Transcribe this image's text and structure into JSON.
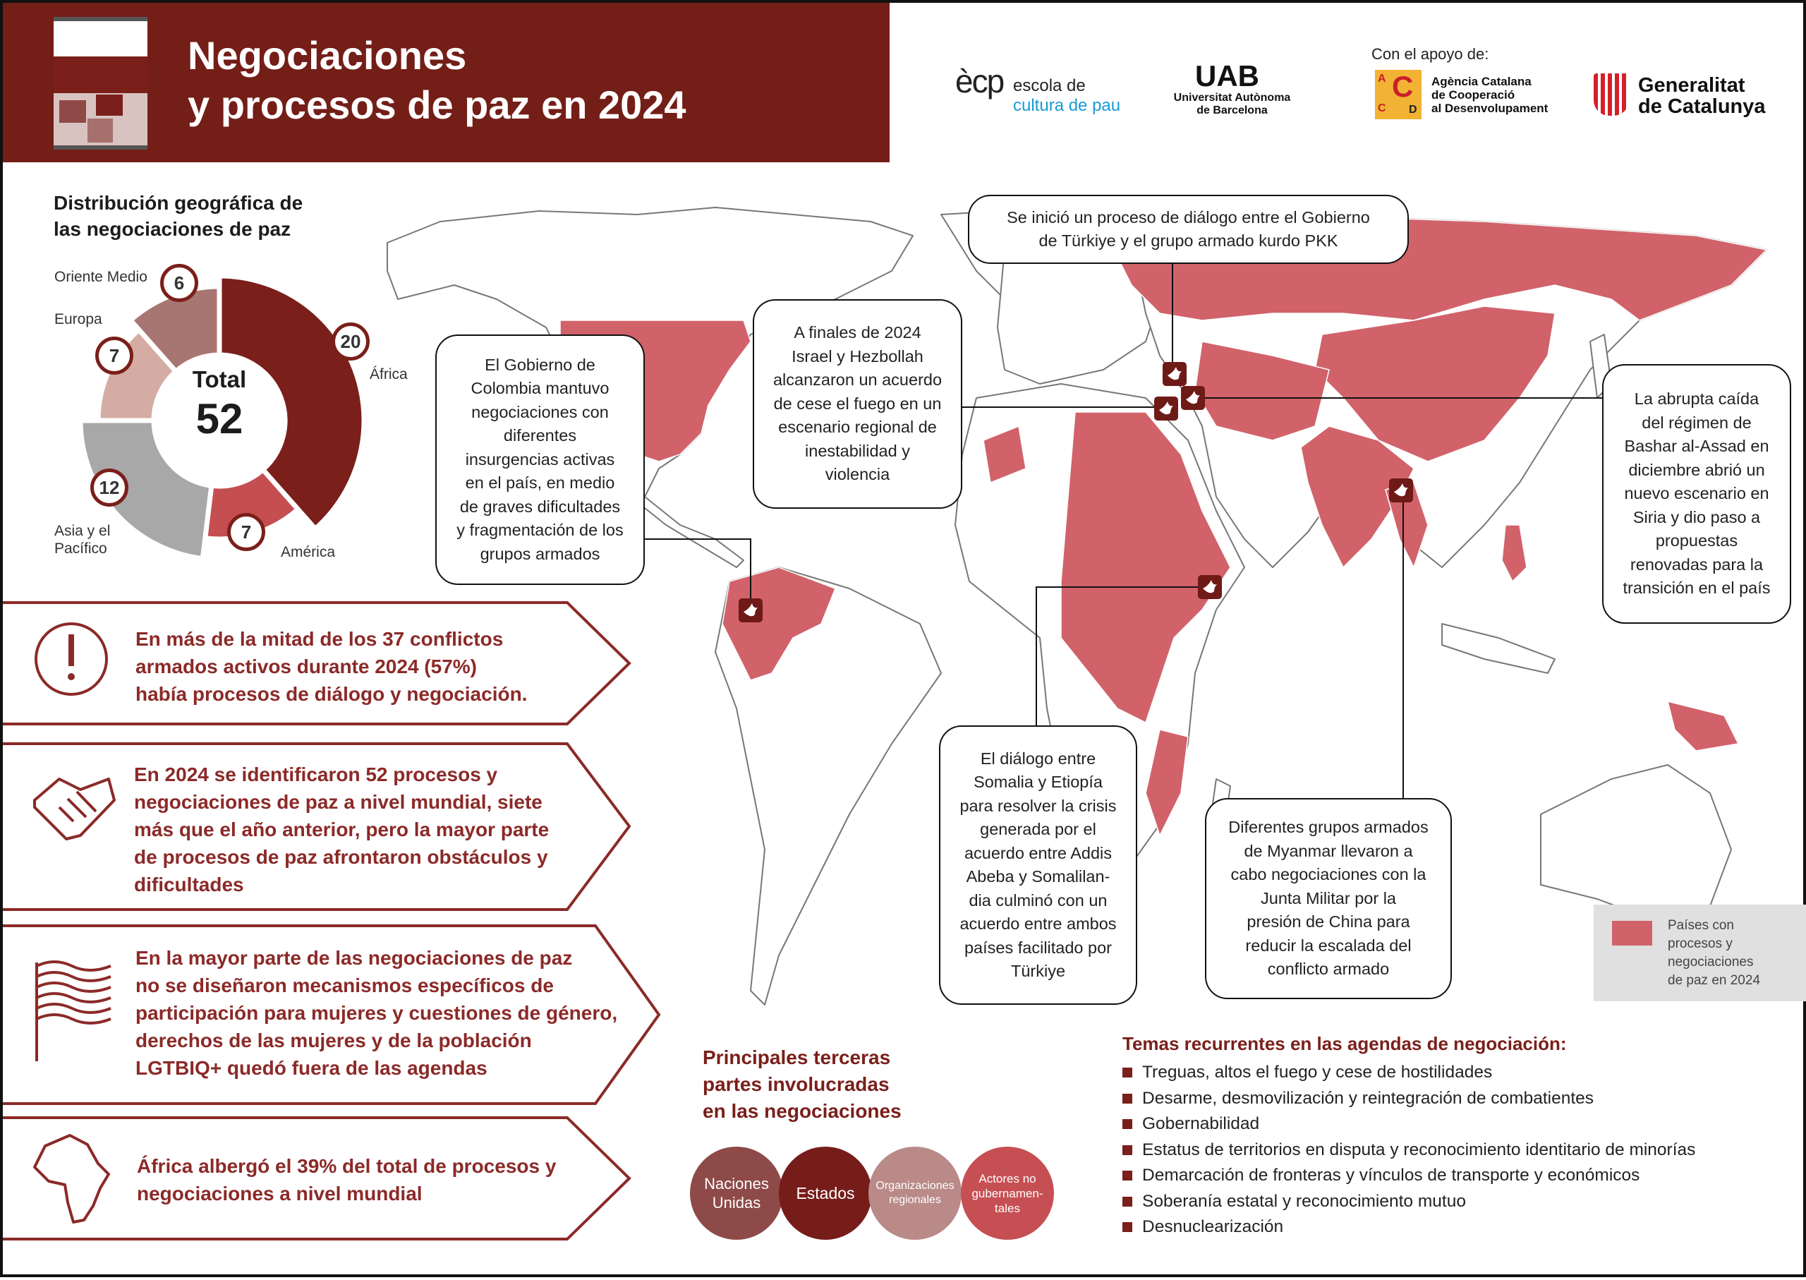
{
  "header": {
    "title_lines": [
      "Negociaciones",
      "y procesos de paz en 2024"
    ],
    "logos": {
      "ecp_mark": "ècp",
      "ecp_line1": "escola de",
      "ecp_line2": "cultura de pau",
      "uab_mark": "UAB",
      "uab_lines": [
        "Universitat Autònoma",
        "de Barcelona"
      ],
      "support_label": "Con el apoyo de:",
      "accd_letters": [
        "A",
        "C",
        "C",
        "D"
      ],
      "accd_lines": [
        "Agència Catalana",
        "de Cooperació",
        "al Desenvolupament"
      ],
      "gen_lines": [
        "Generalitat",
        "de Catalunya"
      ]
    }
  },
  "distribution": {
    "title_lines": [
      "Distribución geográfica de",
      "las negociaciones de paz"
    ],
    "total_label": "Total",
    "total_value": "52"
  },
  "chart_data": {
    "type": "pie",
    "variant": "donut",
    "categories": [
      "África",
      "América",
      "Asia y el Pacífico",
      "Europa",
      "Oriente Medio"
    ],
    "values": [
      20,
      7,
      12,
      7,
      6
    ],
    "label_lines": [
      [
        "África"
      ],
      [
        "América"
      ],
      [
        "Asia y el",
        "Pacífico"
      ],
      [
        "Europa"
      ],
      [
        "Oriente Medio"
      ]
    ],
    "colors": [
      "#7a1f1a",
      "#c44e50",
      "#a8a8a8",
      "#d4aca4",
      "#a87672"
    ],
    "total": 52
  },
  "points": [
    {
      "icon": "exclamation-icon",
      "lines": [
        "En más de la mitad de los 37 conflictos",
        "armados activos durante 2024 (57%)",
        "había procesos de diálogo y negociación."
      ]
    },
    {
      "icon": "handshake-icon",
      "lines": [
        "En 2024 se identificaron 52 procesos y",
        "negociaciones de paz a nivel mundial, siete",
        "más que el año anterior, pero la mayor parte",
        "de procesos de paz afrontaron obstáculos y",
        "dificultades"
      ]
    },
    {
      "icon": "flag-icon",
      "lines": [
        "En la mayor parte de las negociaciones de paz",
        "no se diseñaron mecanismos específicos de",
        "participación para mujeres y cuestiones de género,",
        "derechos de las mujeres y de la población",
        "LGTBIQ+ quedó fuera de las agendas"
      ]
    },
    {
      "icon": "africa-icon",
      "lines": [
        "África albergó el 39% del total de procesos y",
        "negociaciones a nivel mundial"
      ]
    }
  ],
  "callouts": {
    "turkiye": [
      "Se inició un proceso de diálogo entre el Gobierno",
      "de Türkiye y el grupo armado kurdo PKK"
    ],
    "israel": [
      "A finales de 2024",
      "Israel y Hezbollah",
      "alcanzaron un acuerdo",
      "de cese el fuego en un",
      "escenario regional de",
      "inestabilidad y",
      "violencia"
    ],
    "colombia": [
      "El Gobierno de",
      "Colombia mantuvo",
      "negociaciones con",
      "diferentes",
      "insurgencias activas",
      "en el país, en medio",
      "de graves dificultades",
      "y fragmentación de los",
      "grupos armados"
    ],
    "siria": [
      "La abrupta caída",
      "del régimen de",
      "Bashar al-Assad en",
      "diciembre abrió un",
      "nuevo escenario en",
      "Siria y dio paso a",
      "propuestas",
      "renovadas para la",
      "transición en el país"
    ],
    "somalia": [
      "El diálogo entre",
      "Somalia y Etiopía",
      "para resolver la crisis",
      "generada por el",
      "acuerdo entre Addis",
      "Abeba y Somalilan-",
      "dia culminó con un",
      "acuerdo entre ambos",
      "países facilitado por",
      "Türkiye"
    ],
    "myanmar": [
      "Diferentes grupos armados",
      "de Myanmar llevaron a",
      "cabo negociaciones con la",
      "Junta Militar por la",
      "presión de China para",
      "reducir la escalada del",
      "conflicto armado"
    ]
  },
  "map": {
    "highlight_color": "#d1626a",
    "marker_icon": "dove-icon",
    "legend_lines": [
      "Países con",
      "procesos y",
      "negociaciones",
      "de paz en 2024"
    ]
  },
  "third_parties": {
    "title_lines": [
      "Principales terceras",
      "partes involucradas",
      "en las negociaciones"
    ],
    "items": [
      {
        "lines": [
          "Naciones",
          "Unidas"
        ],
        "color": "#8e4a48"
      },
      {
        "lines": [
          "Estados"
        ],
        "color": "#761d1a"
      },
      {
        "lines": [
          "Organizaciones",
          "regionales"
        ],
        "color": "#b98a88"
      },
      {
        "lines": [
          "Actores no",
          "gubernamen-",
          "tales"
        ],
        "color": "#c64f53"
      }
    ]
  },
  "topics": {
    "title": "Temas recurrentes en las agendas de negociación:",
    "items": [
      "Treguas, altos el fuego y cese de hostilidades",
      "Desarme, desmovilización y reintegración de combatientes",
      "Gobernabilidad",
      "Estatus de territorios en disputa y reconocimiento identitario de minorías",
      "Demarcación de fronteras y vínculos de transporte y económicos",
      "Soberanía estatal y reconocimiento mutuo",
      "Desnuclearización"
    ]
  }
}
